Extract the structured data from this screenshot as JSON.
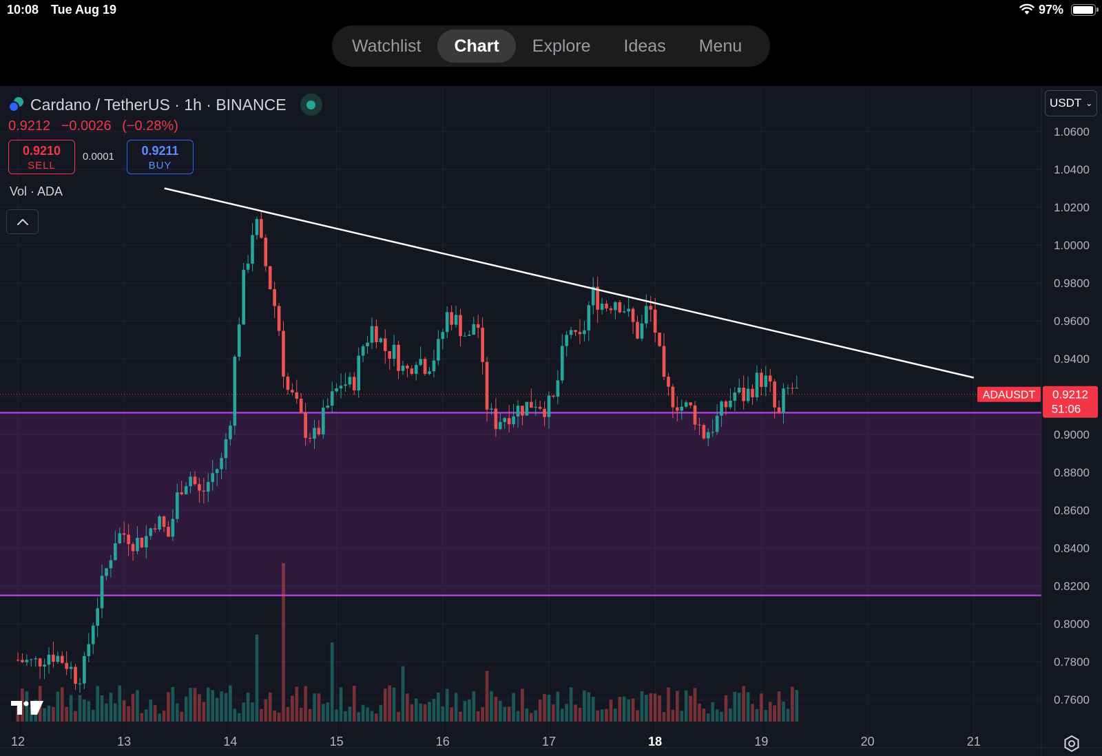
{
  "status_bar": {
    "time": "10:08",
    "date": "Tue Aug 19",
    "battery": "97%"
  },
  "nav": {
    "tabs": [
      {
        "label": "Watchlist",
        "active": false
      },
      {
        "label": "Chart",
        "active": true
      },
      {
        "label": "Explore",
        "active": false
      },
      {
        "label": "Ideas",
        "active": false
      },
      {
        "label": "Menu",
        "active": false
      }
    ]
  },
  "header": {
    "symbol": "Cardano / TetherUS · 1h · BINANCE",
    "last": "0.9212",
    "change": "−0.0026",
    "change_pct": "(−0.28%)",
    "sell_price": "0.9210",
    "sell_label": "SELL",
    "spread": "0.0001",
    "buy_price": "0.9211",
    "buy_label": "BUY",
    "volume_label": "Vol · ADA",
    "currency": "USDT"
  },
  "colors": {
    "up": "#26a69a",
    "down": "#ef5350",
    "zone": "#9c27b0",
    "background": "#141722",
    "trendline": "#ffffff"
  },
  "chart_data": {
    "type": "candlestick",
    "symbol": "ADAUSDT",
    "timeframe": "1h",
    "x_ticks": [
      "12",
      "13",
      "14",
      "15",
      "16",
      "17",
      "18",
      "19",
      "20",
      "21"
    ],
    "y_ticks": [
      "1.0600",
      "1.0400",
      "1.0200",
      "1.0000",
      "0.9800",
      "0.9600",
      "0.9400",
      "0.9200",
      "0.9000",
      "0.8800",
      "0.8600",
      "0.8400",
      "0.8200",
      "0.8000",
      "0.7800",
      "0.7600"
    ],
    "ylim": [
      0.744,
      1.084
    ],
    "x_range_days": [
      12.0,
      21.8
    ],
    "current_price": "0.9212",
    "current_label": "ADAUSDT",
    "countdown": "51:06",
    "support_zone": {
      "upper": 0.9115,
      "lower": 0.815
    },
    "trendline": {
      "start": {
        "day": 13.38,
        "price": 1.03
      },
      "end": {
        "day": 21.0,
        "price": 0.93
      }
    },
    "price_path": [
      {
        "day": 12.0,
        "price": 0.781
      },
      {
        "day": 12.15,
        "price": 0.779
      },
      {
        "day": 12.3,
        "price": 0.785
      },
      {
        "day": 12.45,
        "price": 0.78
      },
      {
        "day": 12.55,
        "price": 0.772
      },
      {
        "day": 12.62,
        "price": 0.776
      },
      {
        "day": 12.7,
        "price": 0.8
      },
      {
        "day": 12.8,
        "price": 0.822
      },
      {
        "day": 12.92,
        "price": 0.846
      },
      {
        "day": 13.02,
        "price": 0.848
      },
      {
        "day": 13.1,
        "price": 0.843
      },
      {
        "day": 13.2,
        "price": 0.845
      },
      {
        "day": 13.3,
        "price": 0.856
      },
      {
        "day": 13.42,
        "price": 0.846
      },
      {
        "day": 13.52,
        "price": 0.872
      },
      {
        "day": 13.62,
        "price": 0.879
      },
      {
        "day": 13.72,
        "price": 0.867
      },
      {
        "day": 13.82,
        "price": 0.878
      },
      {
        "day": 13.92,
        "price": 0.886
      },
      {
        "day": 14.0,
        "price": 0.91
      },
      {
        "day": 14.05,
        "price": 0.945
      },
      {
        "day": 14.12,
        "price": 0.98
      },
      {
        "day": 14.18,
        "price": 0.998
      },
      {
        "day": 14.23,
        "price": 1.015
      },
      {
        "day": 14.28,
        "price": 1.002
      },
      {
        "day": 14.35,
        "price": 0.985
      },
      {
        "day": 14.45,
        "price": 0.96
      },
      {
        "day": 14.52,
        "price": 0.925
      },
      {
        "day": 14.6,
        "price": 0.918
      },
      {
        "day": 14.7,
        "price": 0.903
      },
      {
        "day": 14.8,
        "price": 0.898
      },
      {
        "day": 14.92,
        "price": 0.915
      },
      {
        "day": 15.05,
        "price": 0.928
      },
      {
        "day": 15.15,
        "price": 0.925
      },
      {
        "day": 15.25,
        "price": 0.947
      },
      {
        "day": 15.35,
        "price": 0.958
      },
      {
        "day": 15.45,
        "price": 0.945
      },
      {
        "day": 15.55,
        "price": 0.943
      },
      {
        "day": 15.65,
        "price": 0.932
      },
      {
        "day": 15.75,
        "price": 0.942
      },
      {
        "day": 15.85,
        "price": 0.936
      },
      {
        "day": 15.95,
        "price": 0.944
      },
      {
        "day": 16.05,
        "price": 0.965
      },
      {
        "day": 16.15,
        "price": 0.958
      },
      {
        "day": 16.25,
        "price": 0.95
      },
      {
        "day": 16.32,
        "price": 0.965
      },
      {
        "day": 16.4,
        "price": 0.918
      },
      {
        "day": 16.48,
        "price": 0.906
      },
      {
        "day": 16.58,
        "price": 0.91
      },
      {
        "day": 16.68,
        "price": 0.913
      },
      {
        "day": 16.78,
        "price": 0.915
      },
      {
        "day": 16.88,
        "price": 0.918
      },
      {
        "day": 16.98,
        "price": 0.914
      },
      {
        "day": 17.05,
        "price": 0.918
      },
      {
        "day": 17.12,
        "price": 0.94
      },
      {
        "day": 17.2,
        "price": 0.958
      },
      {
        "day": 17.27,
        "price": 0.945
      },
      {
        "day": 17.35,
        "price": 0.96
      },
      {
        "day": 17.4,
        "price": 0.975
      },
      {
        "day": 17.48,
        "price": 0.97
      },
      {
        "day": 17.55,
        "price": 0.968
      },
      {
        "day": 17.62,
        "price": 0.972
      },
      {
        "day": 17.7,
        "price": 0.968
      },
      {
        "day": 17.77,
        "price": 0.96
      },
      {
        "day": 17.85,
        "price": 0.952
      },
      {
        "day": 17.92,
        "price": 0.966
      },
      {
        "day": 17.96,
        "price": 0.965
      },
      {
        "day": 18.02,
        "price": 0.95
      },
      {
        "day": 18.08,
        "price": 0.925
      },
      {
        "day": 18.15,
        "price": 0.92
      },
      {
        "day": 18.25,
        "price": 0.915
      },
      {
        "day": 18.35,
        "price": 0.913
      },
      {
        "day": 18.45,
        "price": 0.9
      },
      {
        "day": 18.55,
        "price": 0.905
      },
      {
        "day": 18.65,
        "price": 0.914
      },
      {
        "day": 18.75,
        "price": 0.922
      },
      {
        "day": 18.85,
        "price": 0.92
      },
      {
        "day": 18.95,
        "price": 0.928
      },
      {
        "day": 19.02,
        "price": 0.93
      },
      {
        "day": 19.1,
        "price": 0.922
      },
      {
        "day": 19.15,
        "price": 0.905
      },
      {
        "day": 19.22,
        "price": 0.922
      },
      {
        "day": 19.3,
        "price": 0.925
      },
      {
        "day": 19.34,
        "price": 0.9212
      }
    ],
    "volume_spikes": [
      {
        "day": 14.25,
        "level": 0.55
      },
      {
        "day": 14.52,
        "level": 1.0
      },
      {
        "day": 14.95,
        "level": 0.5
      },
      {
        "day": 15.63,
        "level": 0.35
      },
      {
        "day": 16.4,
        "level": 0.32
      }
    ]
  }
}
